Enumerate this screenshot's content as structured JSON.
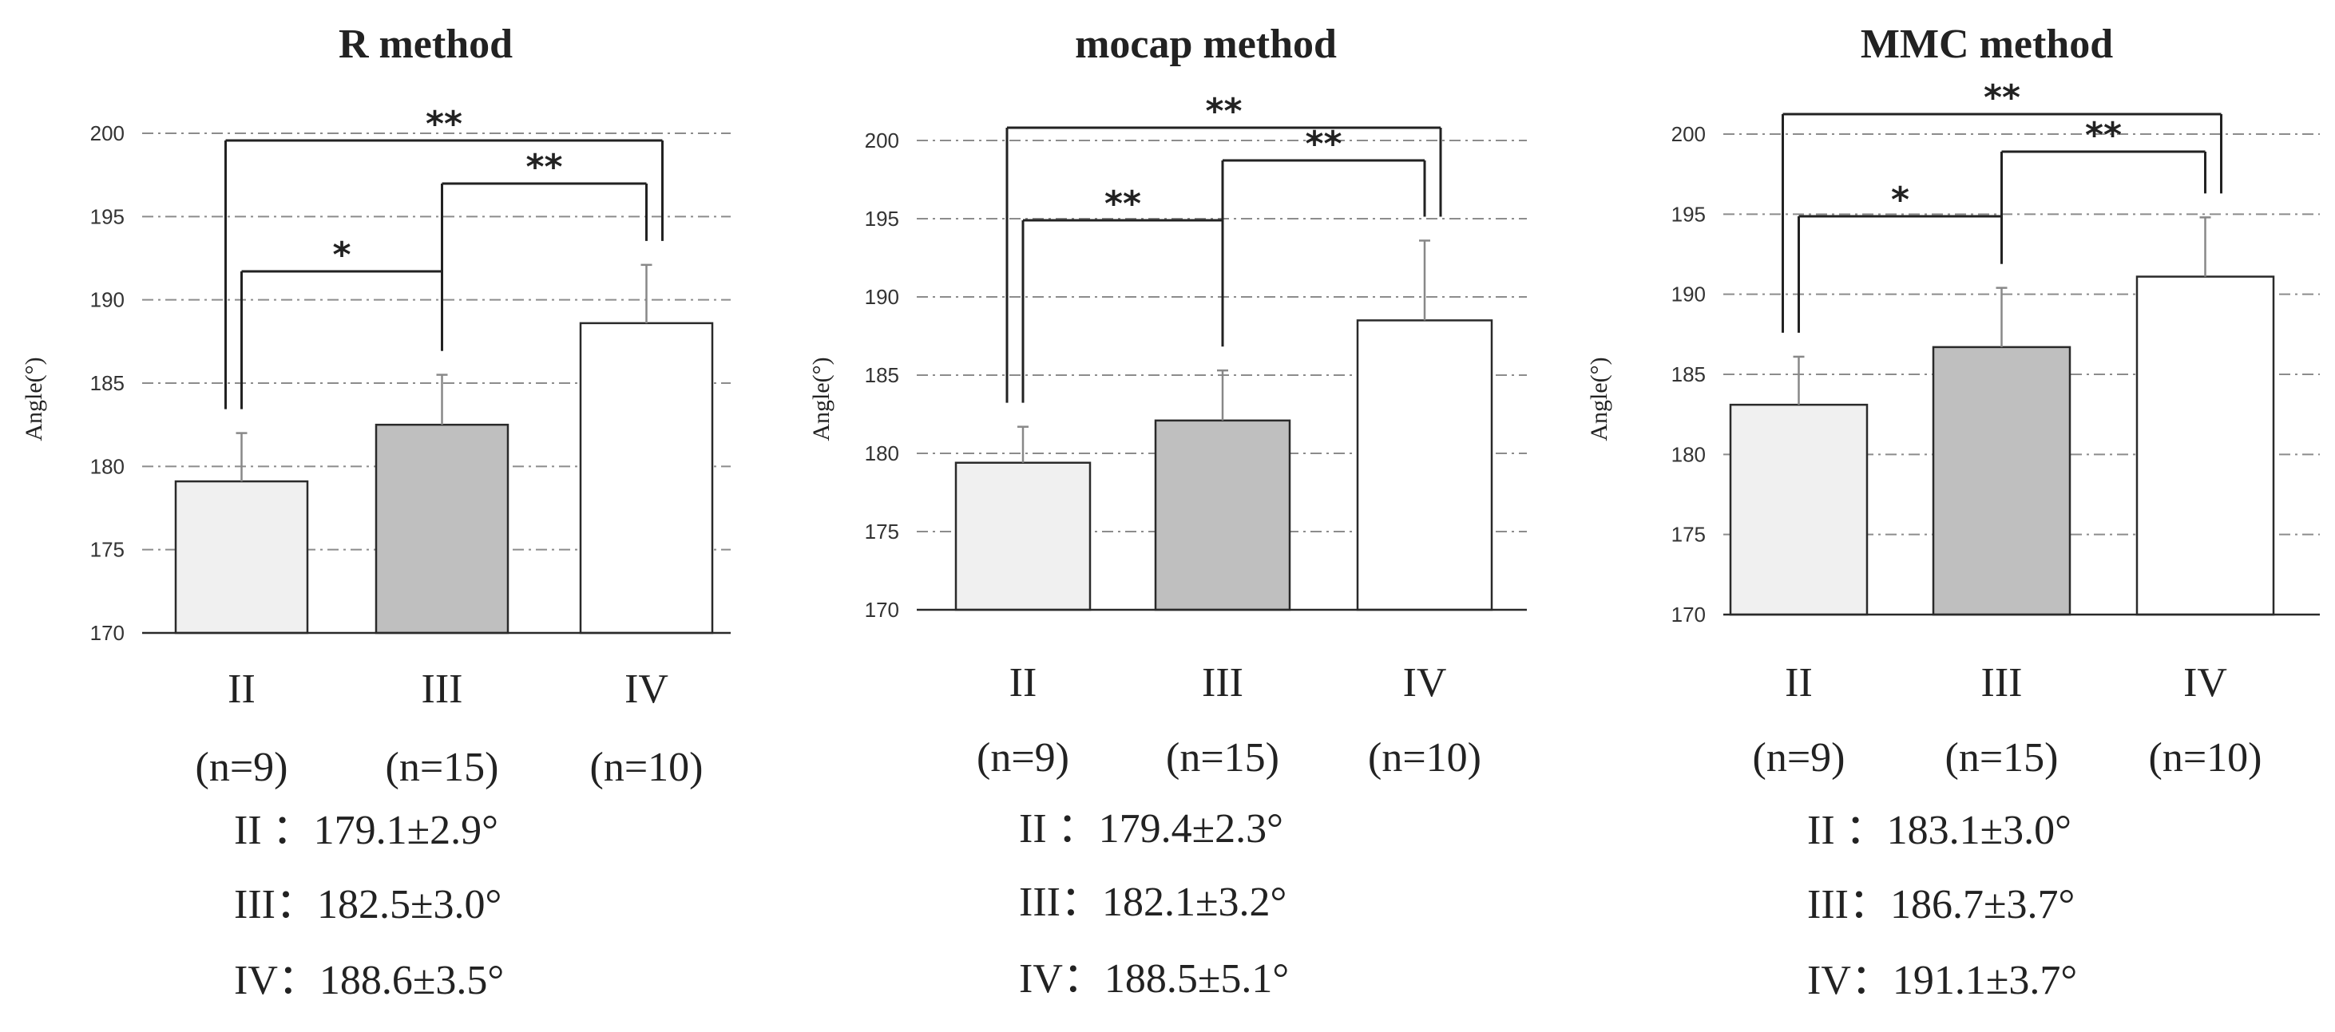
{
  "chart_data": [
    {
      "type": "bar",
      "title": "R method",
      "ylabel": "Angle(°)",
      "ylim": [
        170,
        200
      ],
      "yticks": [
        "170",
        "175",
        "180",
        "185",
        "190",
        "195",
        "200"
      ],
      "grid": true,
      "categories": [
        "II",
        "III",
        "IV"
      ],
      "n_labels": [
        "(n=9)",
        "(n=15)",
        "(n=10)"
      ],
      "values": [
        179.1,
        182.5,
        188.6
      ],
      "errors": [
        2.9,
        3.0,
        3.5
      ],
      "bar_colors": [
        "#f0f0f0",
        "#bfbfbf",
        "#ffffff"
      ],
      "significance": [
        {
          "from": 0,
          "to": 1,
          "label": "*"
        },
        {
          "from": 1,
          "to": 2,
          "label": "**"
        },
        {
          "from": 0,
          "to": 2,
          "label": "**"
        }
      ],
      "summary": [
        "II ：179.1±2.9°",
        "III：182.5±3.0°",
        "IV：188.6±3.5°"
      ]
    },
    {
      "type": "bar",
      "title": "mocap method",
      "ylabel": "Angle(°)",
      "ylim": [
        170,
        200
      ],
      "yticks": [
        "170",
        "175",
        "180",
        "185",
        "190",
        "195",
        "200"
      ],
      "grid": true,
      "categories": [
        "II",
        "III",
        "IV"
      ],
      "n_labels": [
        "(n=9)",
        "(n=15)",
        "(n=10)"
      ],
      "values": [
        179.4,
        182.1,
        188.5
      ],
      "errors": [
        2.3,
        3.2,
        5.1
      ],
      "bar_colors": [
        "#f0f0f0",
        "#bfbfbf",
        "#ffffff"
      ],
      "significance": [
        {
          "from": 0,
          "to": 1,
          "label": "**"
        },
        {
          "from": 1,
          "to": 2,
          "label": "**"
        },
        {
          "from": 0,
          "to": 2,
          "label": "**"
        }
      ],
      "summary": [
        "II ：179.4±2.3°",
        "III：182.1±3.2°",
        "IV：188.5±5.1°"
      ]
    },
    {
      "type": "bar",
      "title": "MMC method",
      "ylabel": "Angle(°)",
      "ylim": [
        170,
        200
      ],
      "yticks": [
        "170",
        "175",
        "180",
        "185",
        "190",
        "195",
        "200"
      ],
      "grid": true,
      "categories": [
        "II",
        "III",
        "IV"
      ],
      "n_labels": [
        "(n=9)",
        "(n=15)",
        "(n=10)"
      ],
      "values": [
        183.1,
        186.7,
        191.1
      ],
      "errors": [
        3.0,
        3.7,
        3.7
      ],
      "bar_colors": [
        "#f0f0f0",
        "#bfbfbf",
        "#ffffff"
      ],
      "significance": [
        {
          "from": 0,
          "to": 1,
          "label": "*"
        },
        {
          "from": 1,
          "to": 2,
          "label": "**"
        },
        {
          "from": 0,
          "to": 2,
          "label": "**"
        }
      ],
      "summary": [
        "II ：183.1±3.0°",
        "III：186.7±3.7°",
        "IV：191.1±3.7°"
      ]
    }
  ]
}
